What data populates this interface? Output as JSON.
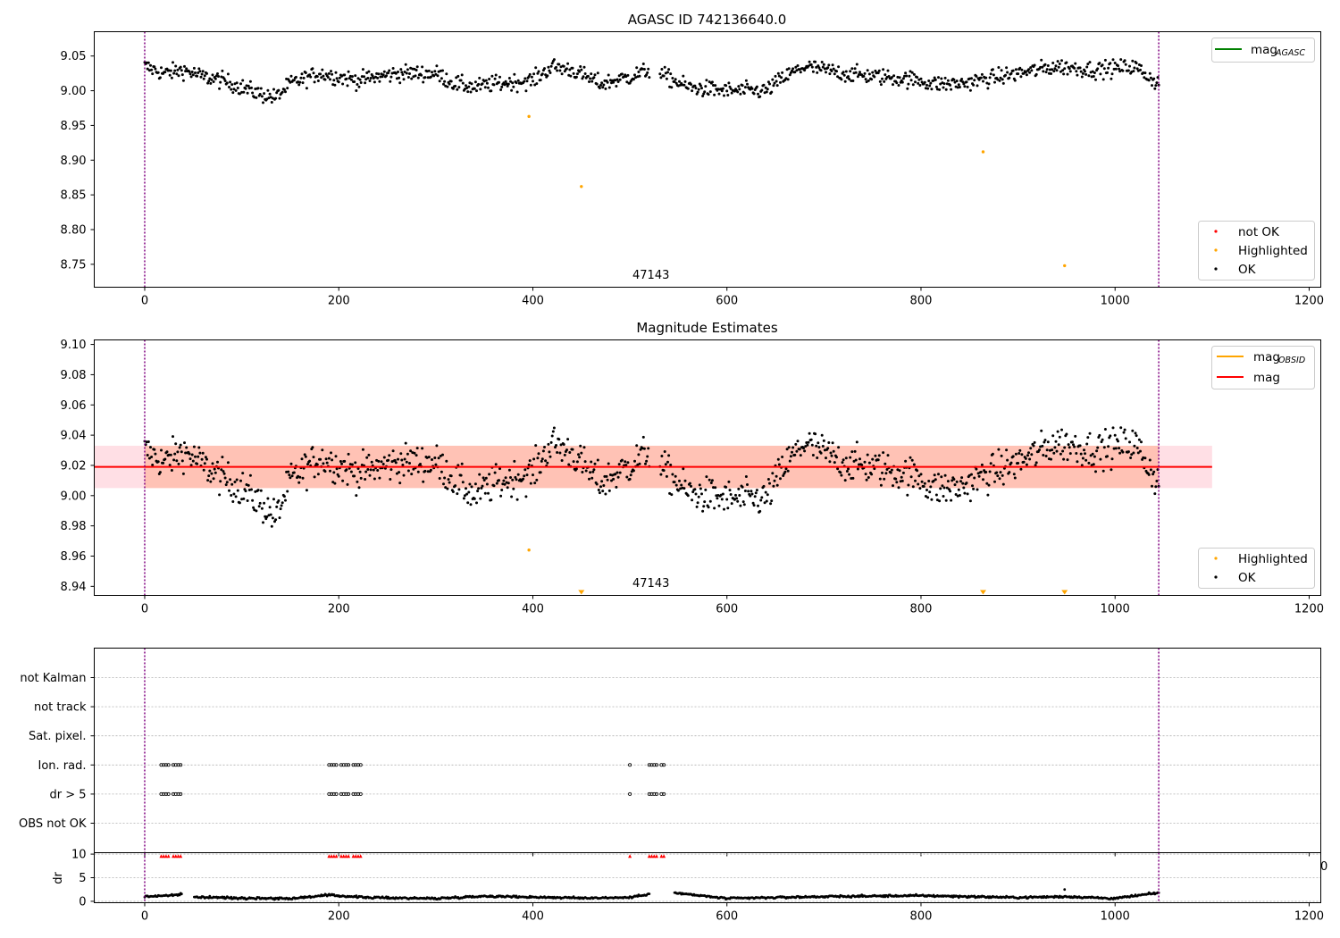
{
  "colors": {
    "ok": "#000000",
    "not_ok": "#ff0000",
    "highlighted": "#ffa500",
    "agasc_line": "#008000",
    "obsid_line": "#ffa500",
    "mean_line": "#ff0000",
    "band_orange": "#ffa07a",
    "band_pink": "#ffc0cb",
    "vline": "#800080"
  },
  "chart_data": [
    {
      "type": "scatter",
      "title": "AGASC ID 742136640.0",
      "xlim": [
        -52,
        1212
      ],
      "ylim": [
        8.717,
        9.085
      ],
      "xticks": [
        "0",
        "200",
        "400",
        "600",
        "800",
        "1000",
        "1200"
      ],
      "yticks": [
        "8.75",
        "8.80",
        "8.85",
        "8.90",
        "8.95",
        "9.00",
        "9.05"
      ],
      "annotation": "47143",
      "vlines": [
        0,
        1045
      ],
      "ok_trend": [
        [
          0,
          9.035
        ],
        [
          20,
          9.025
        ],
        [
          40,
          9.03
        ],
        [
          60,
          9.02
        ],
        [
          80,
          9.015
        ],
        [
          100,
          9.005
        ],
        [
          120,
          8.995
        ],
        [
          135,
          8.99
        ],
        [
          150,
          9.01
        ],
        [
          180,
          9.025
        ],
        [
          220,
          9.015
        ],
        [
          260,
          9.025
        ],
        [
          300,
          9.025
        ],
        [
          320,
          9.01
        ],
        [
          340,
          9.005
        ],
        [
          360,
          9.01
        ],
        [
          400,
          9.015
        ],
        [
          420,
          9.035
        ],
        [
          440,
          9.03
        ],
        [
          470,
          9.01
        ],
        [
          500,
          9.02
        ],
        [
          520,
          9.03
        ],
        [
          530,
          null
        ],
        [
          530,
          9.025
        ],
        [
          560,
          9.005
        ],
        [
          600,
          9.0
        ],
        [
          640,
          9.0
        ],
        [
          660,
          9.02
        ],
        [
          680,
          9.035
        ],
        [
          720,
          9.025
        ],
        [
          760,
          9.02
        ],
        [
          800,
          9.015
        ],
        [
          810,
          9.01
        ],
        [
          840,
          9.01
        ],
        [
          860,
          9.015
        ],
        [
          900,
          9.025
        ],
        [
          940,
          9.035
        ],
        [
          980,
          9.03
        ],
        [
          1020,
          9.035
        ],
        [
          1045,
          9.01
        ]
      ],
      "highlighted_points": [
        [
          396,
          8.963
        ],
        [
          450,
          8.862
        ],
        [
          864,
          8.912
        ],
        [
          948,
          8.748
        ]
      ],
      "legends": [
        {
          "position": "top-right",
          "entries": [
            {
              "label": "mag",
              "sub": "AGASC",
              "kind": "line",
              "color": "#008000"
            }
          ]
        },
        {
          "position": "bottom-right",
          "entries": [
            {
              "label": "not OK",
              "kind": "dot",
              "color": "#ff0000"
            },
            {
              "label": "Highlighted",
              "kind": "dot",
              "color": "#ffa500"
            },
            {
              "label": "OK",
              "kind": "dot",
              "color": "#000000"
            }
          ]
        }
      ]
    },
    {
      "type": "scatter",
      "title": "Magnitude Estimates",
      "xlim": [
        -52,
        1212
      ],
      "ylim": [
        8.934,
        9.103
      ],
      "xticks": [
        "0",
        "200",
        "400",
        "600",
        "800",
        "1000",
        "1200"
      ],
      "yticks": [
        "8.94",
        "8.96",
        "8.98",
        "9.00",
        "9.02",
        "9.04",
        "9.06",
        "9.08",
        "9.10"
      ],
      "annotation": "47143",
      "vlines": [
        0,
        1045
      ],
      "mag_line": 9.019,
      "band": [
        9.005,
        9.033
      ],
      "band_x": [
        -52,
        1100
      ],
      "ok_trend": [
        [
          0,
          9.03
        ],
        [
          20,
          9.022
        ],
        [
          40,
          9.03
        ],
        [
          60,
          9.02
        ],
        [
          80,
          9.012
        ],
        [
          100,
          9.005
        ],
        [
          120,
          8.995
        ],
        [
          135,
          8.985
        ],
        [
          150,
          9.01
        ],
        [
          180,
          9.025
        ],
        [
          220,
          9.015
        ],
        [
          260,
          9.022
        ],
        [
          300,
          9.022
        ],
        [
          320,
          9.01
        ],
        [
          340,
          9.0
        ],
        [
          360,
          9.008
        ],
        [
          400,
          9.015
        ],
        [
          420,
          9.035
        ],
        [
          440,
          9.028
        ],
        [
          470,
          9.008
        ],
        [
          500,
          9.02
        ],
        [
          520,
          9.03
        ],
        [
          530,
          null
        ],
        [
          530,
          9.02
        ],
        [
          560,
          9.002
        ],
        [
          600,
          8.998
        ],
        [
          640,
          8.998
        ],
        [
          660,
          9.02
        ],
        [
          680,
          9.035
        ],
        [
          720,
          9.022
        ],
        [
          760,
          9.018
        ],
        [
          800,
          9.012
        ],
        [
          810,
          9.005
        ],
        [
          840,
          9.005
        ],
        [
          860,
          9.012
        ],
        [
          900,
          9.022
        ],
        [
          940,
          9.035
        ],
        [
          980,
          9.03
        ],
        [
          1020,
          9.035
        ],
        [
          1045,
          9.008
        ]
      ],
      "highlighted_points": [
        [
          396,
          8.964
        ]
      ],
      "clipped_markers": [
        450,
        864,
        948
      ],
      "legends": [
        {
          "position": "top-right",
          "entries": [
            {
              "label": "mag",
              "sub": "OBSID",
              "kind": "line",
              "color": "#ffa500"
            },
            {
              "label": "mag",
              "kind": "line",
              "color": "#ff0000"
            }
          ]
        },
        {
          "position": "bottom-right",
          "entries": [
            {
              "label": "Highlighted",
              "kind": "dot",
              "color": "#ffa500"
            },
            {
              "label": "OK",
              "kind": "dot",
              "color": "#000000"
            }
          ]
        }
      ]
    },
    {
      "type": "scatter",
      "title": "",
      "xlim": [
        -52,
        1212
      ],
      "categories": [
        "not Kalman",
        "not track",
        "Sat. pixel.",
        "Ion. rad.",
        "dr > 5",
        "OBS not OK"
      ],
      "flag_rows": {
        "Ion. rad.": [
          [
            17,
            37
          ],
          [
            190,
            225
          ],
          [
            500,
            500
          ],
          [
            520,
            535
          ]
        ],
        "dr > 5": [
          [
            17,
            37
          ],
          [
            190,
            225
          ],
          [
            500,
            500
          ],
          [
            520,
            535
          ]
        ]
      },
      "vlines": [
        0,
        1045
      ]
    },
    {
      "type": "scatter",
      "ylabel": "dr",
      "xlim": [
        -52,
        1212
      ],
      "ylim": [
        -0.3,
        10.3
      ],
      "yticks": [
        "0",
        "5",
        "10"
      ],
      "xticks": [
        "0",
        "200",
        "400",
        "600",
        "800",
        "1000",
        "1200"
      ],
      "clipped_x_tick": "0",
      "vlines": [
        0,
        1045
      ],
      "dr_trend": [
        [
          0,
          1.0
        ],
        [
          20,
          1.2
        ],
        [
          38,
          1.4
        ],
        [
          40,
          null
        ],
        [
          50,
          0.9
        ],
        [
          100,
          0.7
        ],
        [
          150,
          0.6
        ],
        [
          190,
          1.3
        ],
        [
          230,
          0.8
        ],
        [
          300,
          0.6
        ],
        [
          350,
          1.1
        ],
        [
          400,
          0.9
        ],
        [
          450,
          0.7
        ],
        [
          500,
          0.8
        ],
        [
          520,
          1.6
        ],
        [
          530,
          null
        ],
        [
          545,
          1.8
        ],
        [
          600,
          0.6
        ],
        [
          700,
          1.0
        ],
        [
          800,
          1.2
        ],
        [
          900,
          0.8
        ],
        [
          950,
          1.0
        ],
        [
          1000,
          0.6
        ],
        [
          1045,
          1.8
        ]
      ],
      "outlier_points": [
        [
          948,
          2.5
        ]
      ],
      "red_marker_groups": [
        [
          17,
          37
        ],
        [
          190,
          225
        ],
        [
          500,
          500
        ],
        [
          520,
          535
        ]
      ],
      "red_marker_value": 9.6
    }
  ]
}
